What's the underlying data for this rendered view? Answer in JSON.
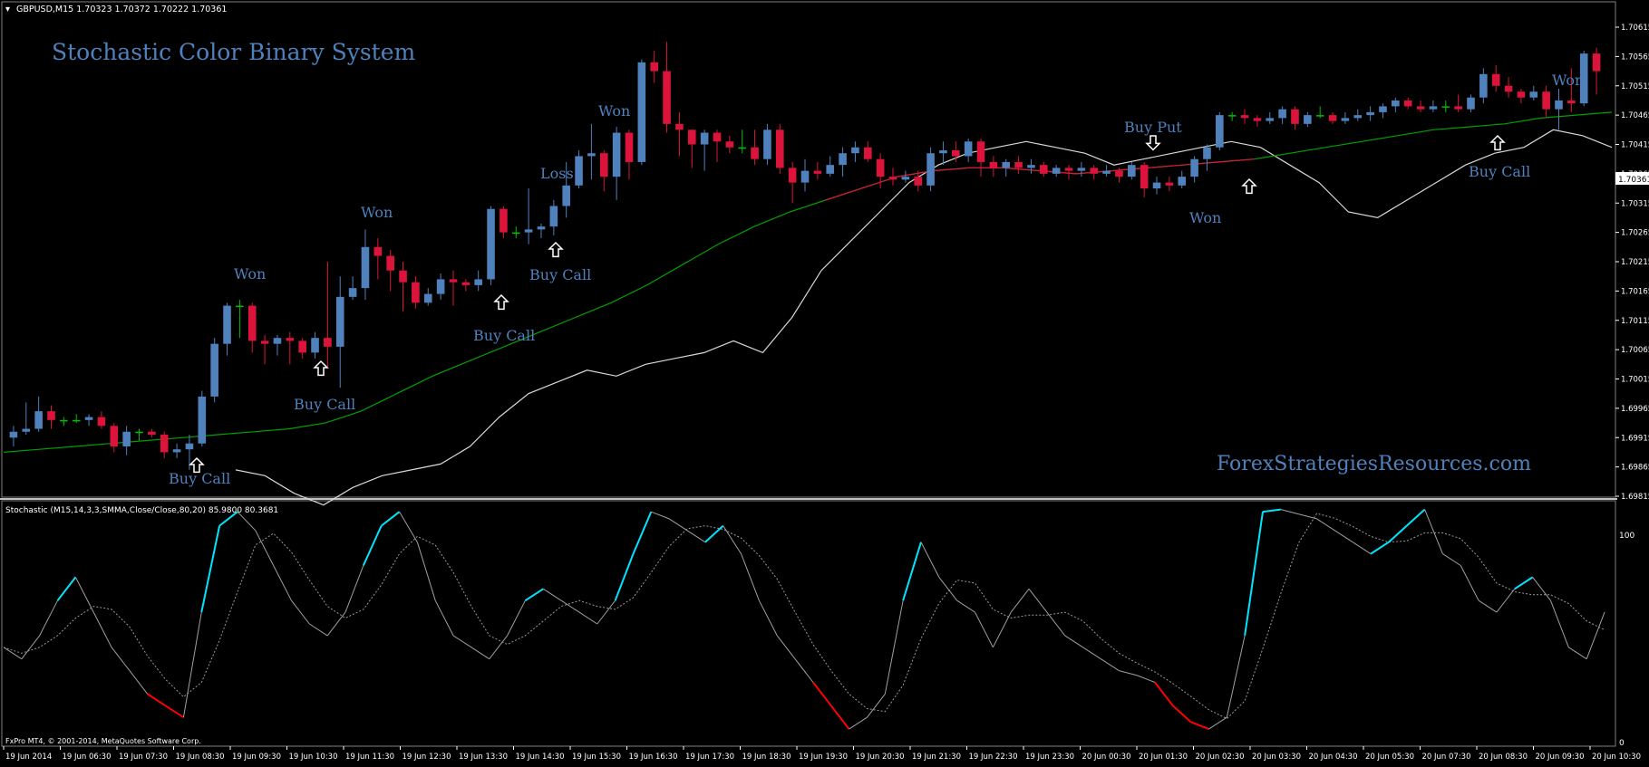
{
  "header": {
    "symbol_info": "GBPUSD,M15  1.70323 1.70372 1.70222 1.70361",
    "title": "Stochastic Color Binary System",
    "watermark": "ForexStrategiesResources.com",
    "copyright": "FxPro MT4, © 2001-2014, MetaQuotes Software Corp."
  },
  "price_axis": {
    "labels": [
      "1.70615",
      "1.70565",
      "1.70515",
      "1.70465",
      "1.70415",
      "1.70365",
      "1.70315",
      "1.70265",
      "1.70215",
      "1.70165",
      "1.70115",
      "1.70065",
      "1.70015",
      "1.69965",
      "1.69915",
      "1.69865",
      "1.69815"
    ],
    "current": "1.70361"
  },
  "indicator": {
    "label": "Stochastic (M15,14,3,3,SMMA,Close/Close,80,20) 85.9800 80.3681",
    "level_top": "100",
    "level_bottom": "0"
  },
  "time_axis": {
    "labels": [
      "19 Jun 2014",
      "19 Jun 06:30",
      "19 Jun 07:30",
      "19 Jun 08:30",
      "19 Jun 09:30",
      "19 Jun 10:30",
      "19 Jun 11:30",
      "19 Jun 12:30",
      "19 Jun 13:30",
      "19 Jun 14:30",
      "19 Jun 15:30",
      "19 Jun 16:30",
      "19 Jun 17:30",
      "19 Jun 18:30",
      "19 Jun 19:30",
      "19 Jun 20:30",
      "19 Jun 21:30",
      "19 Jun 22:30",
      "19 Jun 23:30",
      "20 Jun 00:30",
      "20 Jun 01:30",
      "20 Jun 02:30",
      "20 Jun 03:30",
      "20 Jun 04:30",
      "20 Jun 05:30",
      "20 Jun 07:30",
      "20 Jun 08:30",
      "20 Jun 09:30",
      "20 Jun 10:30"
    ]
  },
  "annotations": [
    {
      "text": "Won",
      "kind": "won"
    },
    {
      "text": "Buy Call",
      "kind": "call"
    },
    {
      "text": "Won",
      "kind": "won"
    },
    {
      "text": "Buy Call",
      "kind": "call"
    },
    {
      "text": "Loss",
      "kind": "loss"
    },
    {
      "text": "Buy Call",
      "kind": "call"
    },
    {
      "text": "Buy Call",
      "kind": "call"
    },
    {
      "text": "Won",
      "kind": "won"
    },
    {
      "text": "Buy Put",
      "kind": "put"
    },
    {
      "text": "Won",
      "kind": "won"
    },
    {
      "text": "Buy Call",
      "kind": "call"
    },
    {
      "text": "Won",
      "kind": "won"
    }
  ],
  "colors": {
    "bull": "#4f81bd",
    "bear": "#dc143c",
    "doji": "#00c000",
    "ma": "#00a000",
    "envelope": "#d8d8d8",
    "stoch_up": "#00e5ff",
    "stoch_down": "#ff0000",
    "stoch_main": "#a0a0a0",
    "signal": "#9a9a9a",
    "text_blue": "#4f81bd"
  },
  "chart_data": [
    {
      "type": "candlestick",
      "title": "GBPUSD,M15",
      "ylim": [
        1.698,
        1.7063
      ],
      "candles": [
        [
          1.69915,
          1.69935,
          1.699,
          1.69925
        ],
        [
          1.69925,
          1.69975,
          1.6992,
          1.6993
        ],
        [
          1.6993,
          1.69985,
          1.69925,
          1.6996
        ],
        [
          1.6996,
          1.6997,
          1.6993,
          1.69945
        ],
        [
          1.69945,
          1.6995,
          1.69935,
          1.69945
        ],
        [
          1.69945,
          1.69955,
          1.6994,
          1.69945
        ],
        [
          1.69945,
          1.69955,
          1.69935,
          1.6995
        ],
        [
          1.6995,
          1.6996,
          1.6993,
          1.69935
        ],
        [
          1.69935,
          1.6994,
          1.6989,
          1.699
        ],
        [
          1.699,
          1.69935,
          1.69885,
          1.69925
        ],
        [
          1.69925,
          1.6993,
          1.6991,
          1.69925
        ],
        [
          1.69925,
          1.6993,
          1.69915,
          1.6992
        ],
        [
          1.6992,
          1.69925,
          1.6988,
          1.6989
        ],
        [
          1.6989,
          1.69905,
          1.6988,
          1.69895
        ],
        [
          1.69895,
          1.6992,
          1.6986,
          1.69905
        ],
        [
          1.69905,
          1.69995,
          1.699,
          1.69985
        ],
        [
          1.69985,
          1.70085,
          1.69975,
          1.70075
        ],
        [
          1.70075,
          1.70145,
          1.70055,
          1.7014
        ],
        [
          1.7014,
          1.7015,
          1.70085,
          1.7014
        ],
        [
          1.7014,
          1.70145,
          1.7006,
          1.7008
        ],
        [
          1.7008,
          1.7009,
          1.7004,
          1.70075
        ],
        [
          1.70075,
          1.7009,
          1.70055,
          1.70085
        ],
        [
          1.70085,
          1.70095,
          1.7004,
          1.7008
        ],
        [
          1.7008,
          1.70085,
          1.7005,
          1.7006
        ],
        [
          1.7006,
          1.70095,
          1.7005,
          1.70085
        ],
        [
          1.70085,
          1.70215,
          1.70035,
          1.7007
        ],
        [
          1.7007,
          1.7019,
          1.7,
          1.70155
        ],
        [
          1.70155,
          1.7019,
          1.7015,
          1.7017
        ],
        [
          1.7017,
          1.7027,
          1.7015,
          1.7024
        ],
        [
          1.7024,
          1.70255,
          1.70185,
          1.70225
        ],
        [
          1.70225,
          1.70235,
          1.70165,
          1.702
        ],
        [
          1.702,
          1.70215,
          1.7013,
          1.7018
        ],
        [
          1.7018,
          1.7019,
          1.70135,
          1.70145
        ],
        [
          1.70145,
          1.7017,
          1.7014,
          1.7016
        ],
        [
          1.7016,
          1.70195,
          1.7015,
          1.70185
        ],
        [
          1.70185,
          1.702,
          1.7014,
          1.7018
        ],
        [
          1.7018,
          1.70185,
          1.70165,
          1.70175
        ],
        [
          1.70175,
          1.702,
          1.70165,
          1.70185
        ],
        [
          1.70185,
          1.7031,
          1.70175,
          1.70305
        ],
        [
          1.70305,
          1.7031,
          1.70255,
          1.70265
        ],
        [
          1.70265,
          1.70275,
          1.70255,
          1.70265
        ],
        [
          1.70265,
          1.7034,
          1.70245,
          1.7027
        ],
        [
          1.7027,
          1.7028,
          1.70255,
          1.70275
        ],
        [
          1.70275,
          1.7032,
          1.7026,
          1.7031
        ],
        [
          1.7031,
          1.70385,
          1.7029,
          1.70345
        ],
        [
          1.70345,
          1.70405,
          1.7034,
          1.70395
        ],
        [
          1.70395,
          1.7045,
          1.70355,
          1.704
        ],
        [
          1.704,
          1.70405,
          1.70335,
          1.7036
        ],
        [
          1.7036,
          1.70445,
          1.7032,
          1.70435
        ],
        [
          1.70435,
          1.7044,
          1.70355,
          1.70385
        ],
        [
          1.70385,
          1.7056,
          1.7038,
          1.70555
        ],
        [
          1.70555,
          1.70575,
          1.7052,
          1.7054
        ],
        [
          1.7054,
          1.7059,
          1.70435,
          1.7045
        ],
        [
          1.7045,
          1.7047,
          1.70395,
          1.7044
        ],
        [
          1.7044,
          1.7044,
          1.70375,
          1.70415
        ],
        [
          1.70415,
          1.7044,
          1.7037,
          1.70435
        ],
        [
          1.70435,
          1.7044,
          1.70385,
          1.7042
        ],
        [
          1.7042,
          1.7043,
          1.704,
          1.7041
        ],
        [
          1.7041,
          1.7044,
          1.704,
          1.7041
        ],
        [
          1.7041,
          1.7044,
          1.7038,
          1.7039
        ],
        [
          1.7039,
          1.7045,
          1.7038,
          1.7044
        ],
        [
          1.7044,
          1.7045,
          1.70365,
          1.70375
        ],
        [
          1.70375,
          1.70385,
          1.70315,
          1.7035
        ],
        [
          1.7035,
          1.7039,
          1.70335,
          1.7037
        ],
        [
          1.7037,
          1.70385,
          1.70355,
          1.70365
        ],
        [
          1.70365,
          1.70395,
          1.7036,
          1.7038
        ],
        [
          1.7038,
          1.7041,
          1.7036,
          1.704
        ],
        [
          1.704,
          1.7042,
          1.70385,
          1.7041
        ],
        [
          1.7041,
          1.7042,
          1.70385,
          1.7039
        ],
        [
          1.7039,
          1.704,
          1.7034,
          1.7036
        ],
        [
          1.7036,
          1.70375,
          1.70345,
          1.70355
        ],
        [
          1.70355,
          1.7037,
          1.7035,
          1.7036
        ],
        [
          1.7036,
          1.7037,
          1.70335,
          1.70345
        ],
        [
          1.70345,
          1.7041,
          1.70335,
          1.704
        ],
        [
          1.704,
          1.7042,
          1.7038,
          1.70405
        ],
        [
          1.70405,
          1.7042,
          1.70385,
          1.70395
        ],
        [
          1.70395,
          1.70425,
          1.70385,
          1.7042
        ],
        [
          1.7042,
          1.70425,
          1.7036,
          1.70385
        ],
        [
          1.70385,
          1.70395,
          1.7036,
          1.70375
        ],
        [
          1.70375,
          1.7039,
          1.7036,
          1.70385
        ],
        [
          1.70385,
          1.70395,
          1.70365,
          1.70375
        ],
        [
          1.70375,
          1.7039,
          1.70365,
          1.7038
        ],
        [
          1.7038,
          1.70385,
          1.7036,
          1.70365
        ],
        [
          1.70365,
          1.7038,
          1.7036,
          1.70375
        ],
        [
          1.70375,
          1.7038,
          1.70355,
          1.7037
        ],
        [
          1.7037,
          1.70385,
          1.7036,
          1.70375
        ],
        [
          1.70375,
          1.7038,
          1.70355,
          1.70365
        ],
        [
          1.70365,
          1.7038,
          1.7036,
          1.7037
        ],
        [
          1.7037,
          1.70375,
          1.7035,
          1.7036
        ],
        [
          1.7036,
          1.70385,
          1.70355,
          1.7038
        ],
        [
          1.7038,
          1.70385,
          1.70325,
          1.7034
        ],
        [
          1.7034,
          1.7036,
          1.7033,
          1.7035
        ],
        [
          1.7035,
          1.7036,
          1.70335,
          1.70345
        ],
        [
          1.70345,
          1.7037,
          1.7034,
          1.7036
        ],
        [
          1.7036,
          1.70395,
          1.7035,
          1.7039
        ],
        [
          1.7039,
          1.70415,
          1.7037,
          1.7041
        ],
        [
          1.7041,
          1.7047,
          1.70405,
          1.70465
        ],
        [
          1.70465,
          1.7047,
          1.70455,
          1.70465
        ],
        [
          1.70465,
          1.70475,
          1.7045,
          1.7046
        ],
        [
          1.7046,
          1.70465,
          1.70445,
          1.70455
        ],
        [
          1.70455,
          1.7047,
          1.7045,
          1.7046
        ],
        [
          1.7046,
          1.7048,
          1.7045,
          1.70475
        ],
        [
          1.70475,
          1.7048,
          1.7044,
          1.7045
        ],
        [
          1.7045,
          1.7047,
          1.70445,
          1.70465
        ],
        [
          1.70465,
          1.7048,
          1.7046,
          1.70465
        ],
        [
          1.70465,
          1.7047,
          1.7045,
          1.70455
        ],
        [
          1.70455,
          1.7047,
          1.7045,
          1.7046
        ],
        [
          1.7046,
          1.70475,
          1.70455,
          1.70465
        ],
        [
          1.70465,
          1.7048,
          1.70455,
          1.7047
        ],
        [
          1.7047,
          1.70485,
          1.7046,
          1.7048
        ],
        [
          1.7048,
          1.70495,
          1.7047,
          1.7049
        ],
        [
          1.7049,
          1.70495,
          1.70475,
          1.7048
        ],
        [
          1.7048,
          1.7049,
          1.7047,
          1.70475
        ],
        [
          1.70475,
          1.7049,
          1.7047,
          1.7048
        ],
        [
          1.7048,
          1.7049,
          1.7047,
          1.7048
        ],
        [
          1.7048,
          1.705,
          1.7047,
          1.70475
        ],
        [
          1.70475,
          1.705,
          1.7047,
          1.70495
        ],
        [
          1.70495,
          1.70545,
          1.70485,
          1.70535
        ],
        [
          1.70535,
          1.7055,
          1.70505,
          1.70515
        ],
        [
          1.70515,
          1.7053,
          1.70495,
          1.70505
        ],
        [
          1.70505,
          1.7051,
          1.70485,
          1.70495
        ],
        [
          1.70495,
          1.70515,
          1.7049,
          1.70505
        ],
        [
          1.70505,
          1.70515,
          1.7046,
          1.70475
        ],
        [
          1.70475,
          1.7051,
          1.7044,
          1.7049
        ],
        [
          1.7049,
          1.70545,
          1.7047,
          1.70485
        ],
        [
          1.70485,
          1.70575,
          1.7048,
          1.7057
        ],
        [
          1.7057,
          1.7058,
          1.705,
          1.7054
        ]
      ],
      "moving_average": [
        1.6989,
        1.69895,
        1.699,
        1.69905,
        1.6991,
        1.69915,
        1.6992,
        1.69925,
        1.6993,
        1.6994,
        1.6996,
        1.6999,
        1.7002,
        1.70045,
        1.7007,
        1.70095,
        1.7012,
        1.70145,
        1.70175,
        1.7021,
        1.70245,
        1.70275,
        1.703,
        1.7032,
        1.7034,
        1.7036,
        1.7037,
        1.70375,
        1.70375,
        1.7037,
        1.70365,
        1.7037,
        1.70375,
        1.7038,
        1.70385,
        1.7039,
        1.704,
        1.7041,
        1.7042,
        1.7043,
        1.7044,
        1.70445,
        1.7045,
        1.7046,
        1.70465,
        1.7047
      ],
      "envelope": [
        1.6986,
        1.6985,
        1.6982,
        1.698,
        1.6983,
        1.6985,
        1.6986,
        1.6987,
        1.699,
        1.6995,
        1.6999,
        1.7001,
        1.7003,
        1.7002,
        1.7004,
        1.7005,
        1.7006,
        1.7008,
        1.7006,
        1.7012,
        1.702,
        1.7025,
        1.703,
        1.7035,
        1.7038,
        1.704,
        1.7041,
        1.7042,
        1.7041,
        1.704,
        1.7038,
        1.7039,
        1.704,
        1.7041,
        1.7042,
        1.7041,
        1.7038,
        1.7035,
        1.703,
        1.7029,
        1.7032,
        1.7035,
        1.7038,
        1.704,
        1.7041,
        1.7044,
        1.7043,
        1.7041
      ]
    },
    {
      "type": "line",
      "title": "Stochastic (M15,14,3,3,SMMA,Close/Close,80,20)",
      "ylim": [
        0,
        100
      ],
      "main": [
        40,
        35,
        45,
        60,
        70,
        55,
        40,
        30,
        20,
        15,
        10,
        55,
        92,
        98,
        90,
        75,
        60,
        50,
        45,
        55,
        75,
        92,
        98,
        85,
        60,
        45,
        40,
        35,
        45,
        60,
        65,
        60,
        55,
        50,
        60,
        80,
        98,
        95,
        90,
        85,
        92,
        80,
        60,
        45,
        35,
        25,
        15,
        5,
        10,
        20,
        60,
        85,
        70,
        60,
        55,
        40,
        55,
        65,
        55,
        45,
        40,
        35,
        30,
        28,
        25,
        15,
        8,
        5,
        10,
        45,
        98,
        99,
        97,
        95,
        90,
        85,
        80,
        85,
        92,
        99,
        80,
        75,
        60,
        55,
        65,
        70,
        60,
        40,
        35,
        55
      ]
    }
  ]
}
